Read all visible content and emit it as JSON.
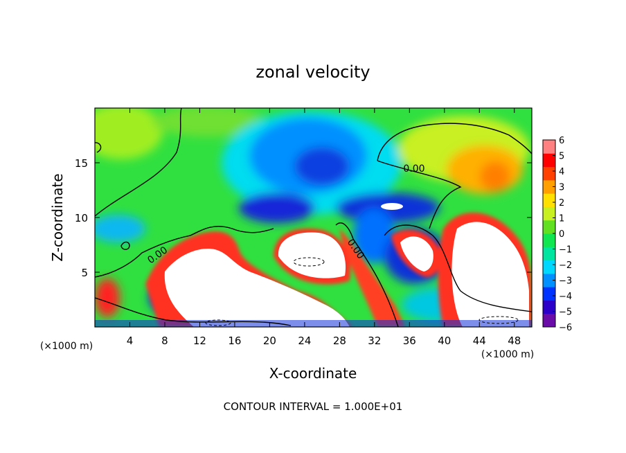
{
  "chart_data": {
    "type": "heatmap",
    "title": "zonal velocity",
    "xlabel": "X-coordinate",
    "ylabel": "Z-coordinate",
    "x_unit": "(×1000 m)",
    "x_unit_right": "(×1000 m)",
    "footer": "CONTOUR INTERVAL = 1.000E+01",
    "xlim": [
      0,
      50
    ],
    "ylim": [
      0,
      20
    ],
    "xticks": [
      4,
      8,
      12,
      16,
      20,
      24,
      28,
      32,
      36,
      40,
      44,
      48
    ],
    "yticks": [
      5,
      10,
      15
    ],
    "colorbar": {
      "range": [
        -6,
        6
      ],
      "ticks": [
        6,
        5,
        4,
        3,
        2,
        1,
        0,
        -1,
        -2,
        -3,
        -4,
        -5,
        -6
      ],
      "colors": [
        "#6a0da8",
        "#2b00c8",
        "#0033ff",
        "#0090ff",
        "#00d8ff",
        "#00e6a0",
        "#10e650",
        "#60e020",
        "#c8f020",
        "#ffe000",
        "#ffa000",
        "#ff4000",
        "#ff0000",
        "#ff8080"
      ]
    },
    "contour_labels": [
      "0.00",
      "0.00",
      "0.00"
    ],
    "field_features": [
      {
        "x": 25,
        "z": 6.5,
        "u": 8,
        "kind": "strong positive core"
      },
      {
        "x": 14,
        "z": 4.5,
        "u": 7,
        "kind": "strong positive band"
      },
      {
        "x": 35,
        "z": 8,
        "u": 7,
        "kind": "strong positive core"
      },
      {
        "x": 46,
        "z": 7,
        "u": 7,
        "kind": "strong positive core"
      },
      {
        "x": 26,
        "z": 14.5,
        "u": -4,
        "kind": "negative region"
      },
      {
        "x": 22,
        "z": 10.5,
        "u": -5,
        "kind": "negative region"
      },
      {
        "x": 34.5,
        "z": 10.8,
        "u": -6,
        "kind": "negative core"
      },
      {
        "x": 45,
        "z": 14,
        "u": 3,
        "kind": "positive region"
      },
      {
        "x": 5,
        "z": 17,
        "u": 1,
        "kind": "weak positive region"
      }
    ]
  }
}
